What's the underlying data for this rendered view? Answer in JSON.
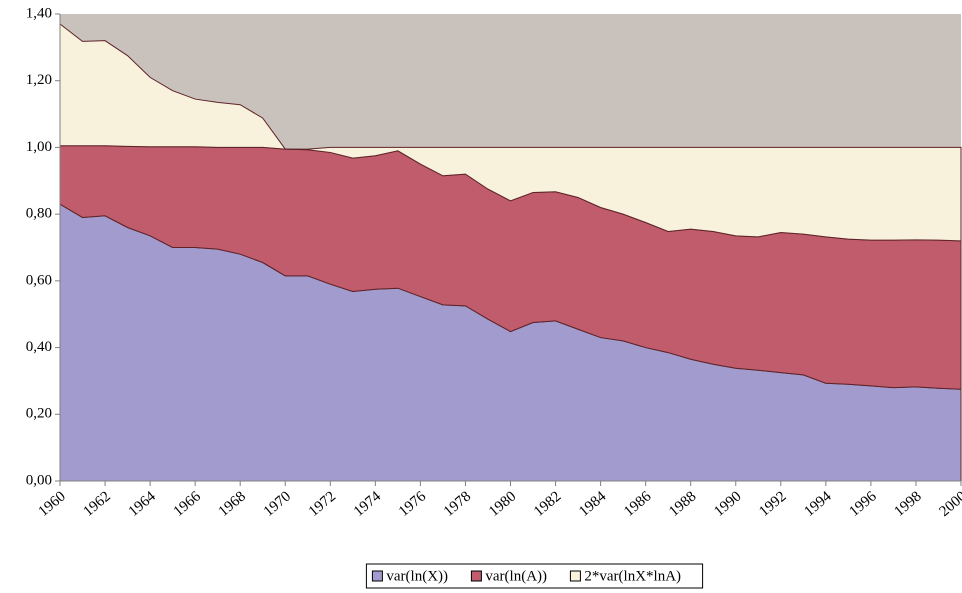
{
  "chart_data": {
    "type": "stacked_area",
    "x": [
      1960,
      1961,
      1962,
      1963,
      1964,
      1965,
      1966,
      1967,
      1968,
      1969,
      1970,
      1971,
      1972,
      1973,
      1974,
      1975,
      1976,
      1977,
      1978,
      1979,
      1980,
      1981,
      1982,
      1983,
      1984,
      1985,
      1986,
      1987,
      1988,
      1989,
      1990,
      1991,
      1992,
      1993,
      1994,
      1995,
      1996,
      1997,
      1998,
      1999,
      2000
    ],
    "series": [
      {
        "name": "var(ln(X))",
        "color": "#a29bcd",
        "values": [
          0.83,
          0.79,
          0.795,
          0.76,
          0.735,
          0.7,
          0.7,
          0.695,
          0.68,
          0.655,
          0.615,
          0.615,
          0.59,
          0.568,
          0.575,
          0.578,
          0.553,
          0.528,
          0.525,
          0.485,
          0.448,
          0.475,
          0.48,
          0.455,
          0.43,
          0.42,
          0.4,
          0.385,
          0.365,
          0.35,
          0.338,
          0.332,
          0.325,
          0.318,
          0.293,
          0.29,
          0.285,
          0.28,
          0.282,
          0.278,
          0.275
        ]
      },
      {
        "name": "var(ln(A))",
        "color": "#c05c6b",
        "values": [
          0.175,
          0.215,
          0.21,
          0.243,
          0.267,
          0.302,
          0.302,
          0.305,
          0.32,
          0.345,
          0.38,
          0.378,
          0.395,
          0.4,
          0.4,
          0.412,
          0.397,
          0.387,
          0.395,
          0.39,
          0.392,
          0.39,
          0.387,
          0.395,
          0.39,
          0.38,
          0.375,
          0.363,
          0.39,
          0.398,
          0.397,
          0.4,
          0.42,
          0.422,
          0.439,
          0.435,
          0.437,
          0.442,
          0.441,
          0.444,
          0.445
        ]
      },
      {
        "name": "2*var(lnX*lnA)",
        "color": "#f8f1dc",
        "values": [
          0.365,
          0.313,
          0.315,
          0.272,
          0.208,
          0.168,
          0.143,
          0.135,
          0.128,
          0.088,
          0,
          0.002,
          0.015,
          0.032,
          0.025,
          0.01,
          0.05,
          0.085,
          0.08,
          0.125,
          0.16,
          0.135,
          0.133,
          0.15,
          0.18,
          0.2,
          0.225,
          0.252,
          0.245,
          0.252,
          0.265,
          0.268,
          0.255,
          0.26,
          0.268,
          0.275,
          0.278,
          0.278,
          0.277,
          0.278,
          0.28
        ]
      }
    ],
    "xlim": [
      1960,
      2000
    ],
    "xticks": [
      1960,
      1962,
      1964,
      1966,
      1968,
      1970,
      1972,
      1974,
      1976,
      1978,
      1980,
      1982,
      1984,
      1986,
      1988,
      1990,
      1992,
      1994,
      1996,
      1998,
      2000
    ],
    "ylim": [
      0,
      1.4
    ],
    "yticks": [
      {
        "value": 0,
        "label": "0,00"
      },
      {
        "value": 0.2,
        "label": "0,20"
      },
      {
        "value": 0.4,
        "label": "0,40"
      },
      {
        "value": 0.6,
        "label": "0,60"
      },
      {
        "value": 0.8,
        "label": "0,80"
      },
      {
        "value": 1,
        "label": "1,00"
      },
      {
        "value": 1.2,
        "label": "1,20"
      },
      {
        "value": 1.4,
        "label": "1,40"
      }
    ],
    "plot_background": "#c9c1bc",
    "legend": "bottom"
  }
}
